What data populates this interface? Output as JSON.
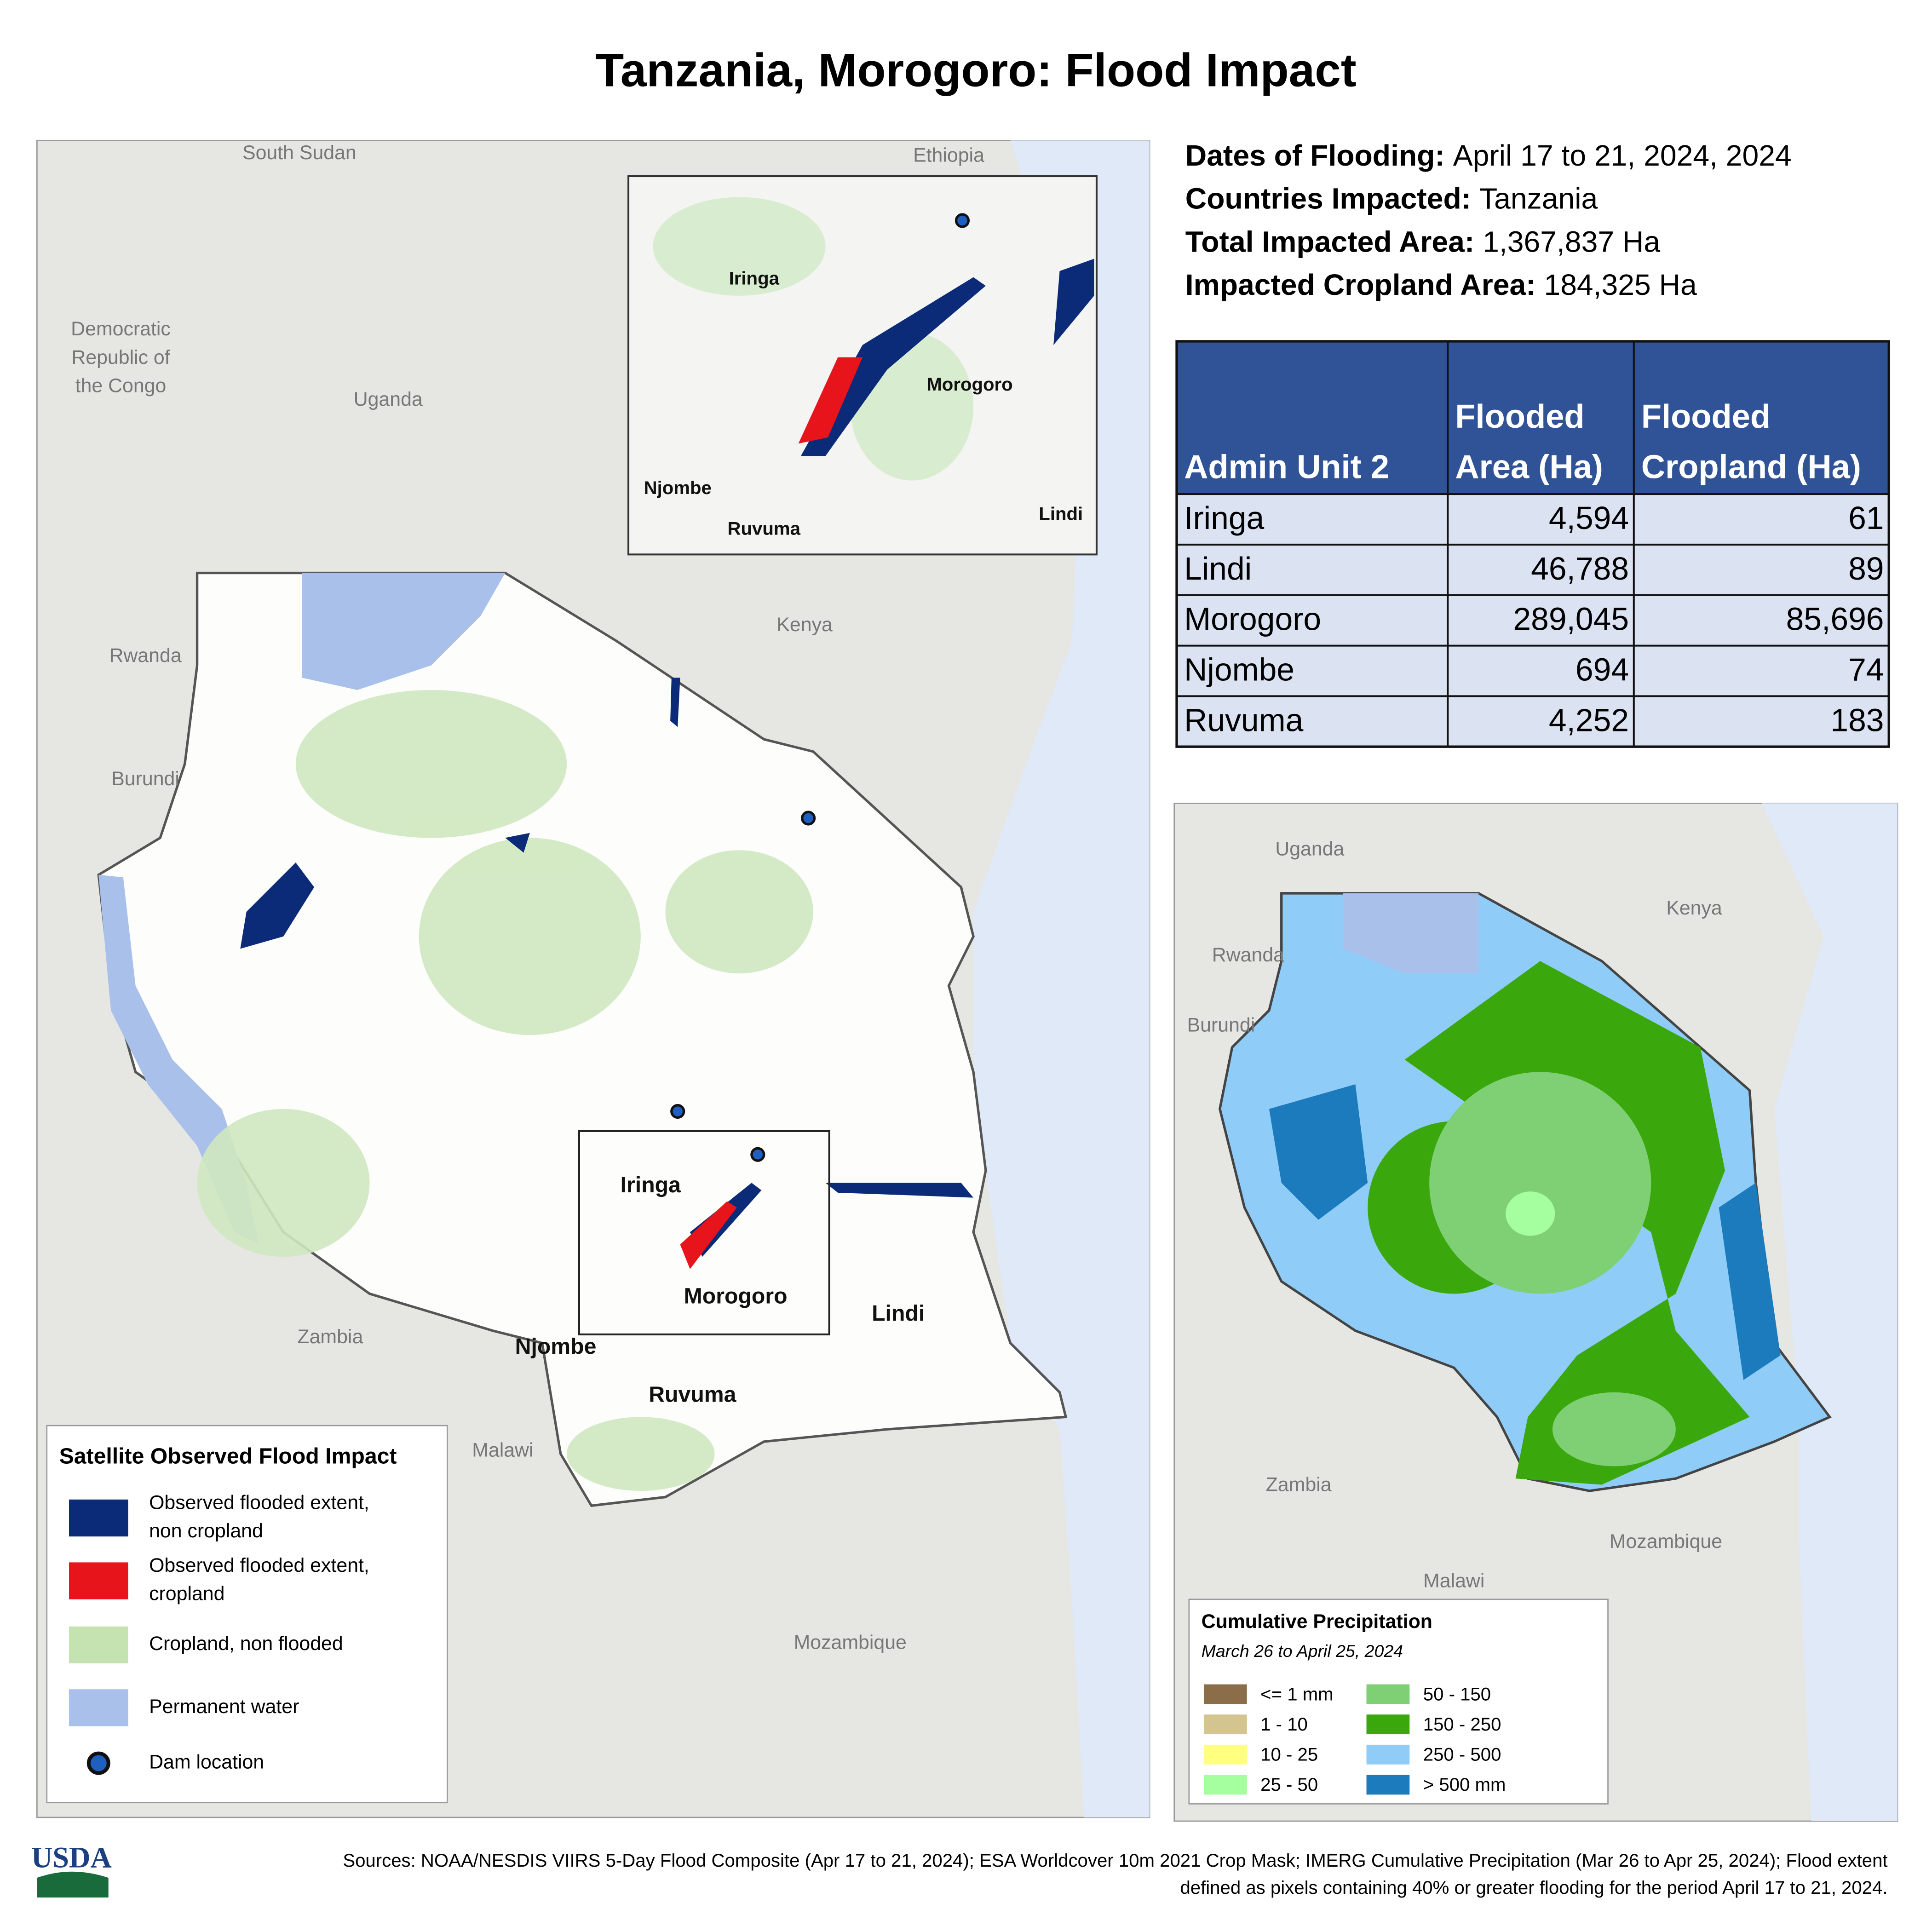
{
  "title": "Tanzania, Morogoro: Flood Impact",
  "summary": [
    {
      "label": "Dates of Flooding:",
      "value": "April 17 to 21, 2024, 2024"
    },
    {
      "label": "Countries Impacted:",
      "value": "Tanzania"
    },
    {
      "label": "Total Impacted Area:",
      "value": "1,367,837 Ha"
    },
    {
      "label": "Impacted Cropland Area:",
      "value": "184,325 Ha"
    }
  ],
  "table": {
    "header": [
      [
        "Admin Unit 2"
      ],
      [
        "Flooded",
        "Area (Ha)"
      ],
      [
        "Flooded",
        "Cropland (Ha)"
      ]
    ],
    "rows": [
      [
        "Iringa",
        "4,594",
        "61"
      ],
      [
        "Lindi",
        "46,788",
        "89"
      ],
      [
        "Morogoro",
        "289,045",
        "85,696"
      ],
      [
        "Njombe",
        "694",
        "74"
      ],
      [
        "Ruvuma",
        "4,252",
        "183"
      ]
    ]
  },
  "main_map": {
    "countries": [
      "South Sudan",
      "Ethiopia",
      "Democratic",
      "Republic of",
      "the Congo",
      "Uganda",
      "Kenya",
      "Rwanda",
      "Burundi",
      "Zambia",
      "Malawi",
      "Mozambique"
    ],
    "regions": [
      "Iringa",
      "Morogoro",
      "Lindi",
      "Njombe",
      "Ruvuma"
    ],
    "legend": {
      "title": "Satellite Observed Flood Impact",
      "items": [
        {
          "label": [
            "Observed flooded extent,",
            "non cropland"
          ],
          "color": "#0b2a78"
        },
        {
          "label": [
            "Observed flooded extent,",
            "cropland"
          ],
          "color": "#e8141b"
        },
        {
          "label": [
            "Cropland, non flooded"
          ],
          "color": "#c4e3b0"
        },
        {
          "label": [
            "Permanent water"
          ],
          "color": "#a8c0ea"
        },
        {
          "label": [
            "Dam location"
          ],
          "color": "#1f5fbf"
        }
      ]
    }
  },
  "inset_map": {
    "labels": [
      "Iringa",
      "Morogoro",
      "Njombe",
      "Ruvuma",
      "Lindi"
    ]
  },
  "precip_map": {
    "countries": [
      "Uganda",
      "Kenya",
      "Rwanda",
      "Burundi",
      "Zambia",
      "Mozambique",
      "Malawi"
    ],
    "legend": {
      "title": "Cumulative Precipitation",
      "subtitle": "March 26 to April 25, 2024",
      "items": [
        {
          "label": "<= 1 mm",
          "color": "#8b6d4a"
        },
        {
          "label": "1 - 10",
          "color": "#d4c590"
        },
        {
          "label": "10 - 25",
          "color": "#ffff80"
        },
        {
          "label": "25 - 50",
          "color": "#a6ff9e"
        },
        {
          "label": "50 - 150",
          "color": "#7fcf74"
        },
        {
          "label": "150 - 250",
          "color": "#3aa80c"
        },
        {
          "label": "250 - 500",
          "color": "#8fcdf8"
        },
        {
          "label": "> 500 mm",
          "color": "#1c7bbd"
        }
      ]
    }
  },
  "logo": "USDA",
  "sources": [
    "Sources: NOAA/NESDIS VIIRS 5-Day Flood Composite (Apr 17 to 21, 2024); ESA Worldcover 10m 2021 Crop Mask; IMERG Cumulative Precipitation (Mar 26 to Apr 25, 2024); Flood extent",
    "defined as pixels containing 40% or greater flooding for the period April 17 to 21, 2024."
  ]
}
